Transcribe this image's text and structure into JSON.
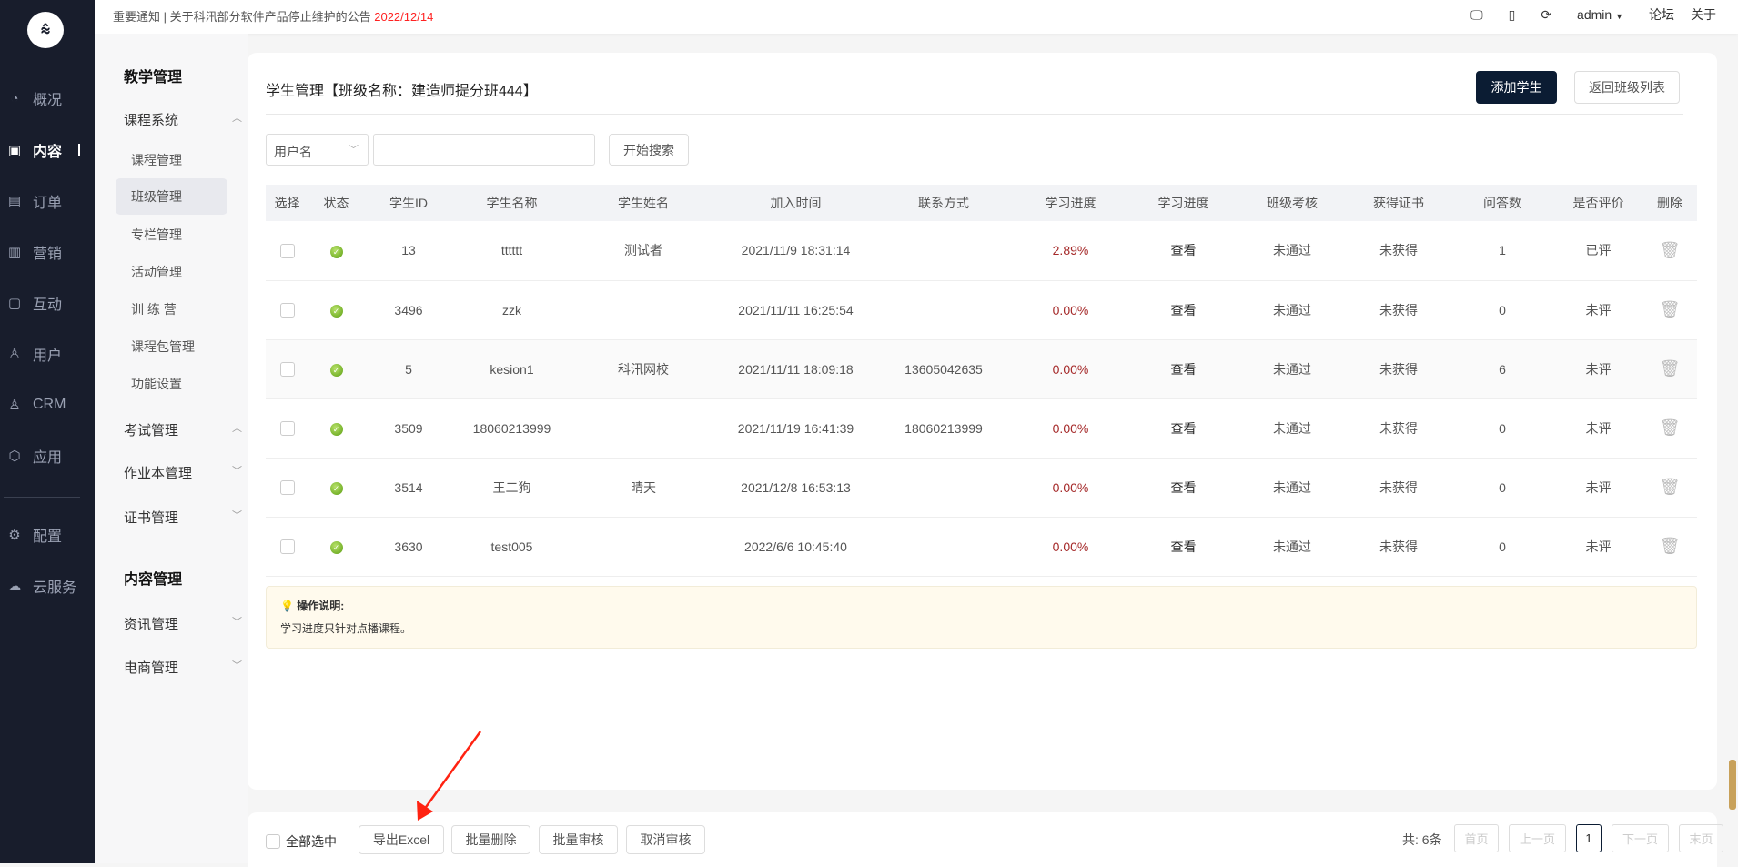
{
  "topbar": {
    "notice": "重要通知 | 关于科汛部分软件产品停止维护的公告",
    "notice_date": "2022/12/14",
    "user": "admin",
    "links": [
      "论坛",
      "关于"
    ]
  },
  "nav": [
    {
      "label": "概况",
      "icon": "pie-chart-icon"
    },
    {
      "label": "内容",
      "icon": "book-icon",
      "active": true
    },
    {
      "label": "订单",
      "icon": "document-icon"
    },
    {
      "label": "营销",
      "icon": "bar-chart-icon"
    },
    {
      "label": "互动",
      "icon": "chat-icon"
    },
    {
      "label": "用户",
      "icon": "user-icon"
    },
    {
      "label": "CRM",
      "icon": "person-tie-icon"
    },
    {
      "label": "应用",
      "icon": "hexagon-icon"
    },
    {
      "label": "配置",
      "icon": "gear-icon"
    },
    {
      "label": "云服务",
      "icon": "cloud-icon"
    }
  ],
  "subnav": {
    "section1": "教学管理",
    "course_system": "课程系统",
    "items": [
      "课程管理",
      "班级管理",
      "专栏管理",
      "活动管理",
      "训 练 营",
      "课程包管理",
      "功能设置"
    ],
    "groups": [
      "考试管理",
      "作业本管理",
      "证书管理"
    ],
    "section2": "内容管理",
    "groups2": [
      "资讯管理",
      "电商管理"
    ]
  },
  "main": {
    "title": "学生管理【班级名称：建造师提分班444】",
    "add_button": "添加学生",
    "back_button": "返回班级列表",
    "search_field": "用户名",
    "search_value": "",
    "search_button": "开始搜索"
  },
  "table": {
    "headers": [
      "选择",
      "状态",
      "学生ID",
      "学生名称",
      "学生姓名",
      "加入时间",
      "联系方式",
      "学习进度",
      "学习进度",
      "班级考核",
      "获得证书",
      "问答数",
      "是否评价",
      "删除"
    ],
    "rows": [
      {
        "id": "13",
        "name": "tttttt",
        "realname": "测试者",
        "joined": "2021/11/9 18:31:14",
        "contact": "",
        "progress": "2.89%",
        "view": "查看",
        "exam": "未通过",
        "cert": "未获得",
        "qa": "1",
        "rated": "已评"
      },
      {
        "id": "3496",
        "name": "zzk",
        "realname": "",
        "joined": "2021/11/11 16:25:54",
        "contact": "",
        "progress": "0.00%",
        "view": "查看",
        "exam": "未通过",
        "cert": "未获得",
        "qa": "0",
        "rated": "未评"
      },
      {
        "id": "5",
        "name": "kesion1",
        "realname": "科汛网校",
        "joined": "2021/11/11 18:09:18",
        "contact": "13605042635",
        "progress": "0.00%",
        "view": "查看",
        "exam": "未通过",
        "cert": "未获得",
        "qa": "6",
        "rated": "未评"
      },
      {
        "id": "3509",
        "name": "18060213999",
        "realname": "",
        "joined": "2021/11/19 16:41:39",
        "contact": "18060213999",
        "progress": "0.00%",
        "view": "查看",
        "exam": "未通过",
        "cert": "未获得",
        "qa": "0",
        "rated": "未评"
      },
      {
        "id": "3514",
        "name": "王二狗",
        "realname": "晴天",
        "joined": "2021/12/8 16:53:13",
        "contact": "",
        "progress": "0.00%",
        "view": "查看",
        "exam": "未通过",
        "cert": "未获得",
        "qa": "0",
        "rated": "未评"
      },
      {
        "id": "3630",
        "name": "test005",
        "realname": "",
        "joined": "2022/6/6 10:45:40",
        "contact": "",
        "progress": "0.00%",
        "view": "查看",
        "exam": "未通过",
        "cert": "未获得",
        "qa": "0",
        "rated": "未评"
      }
    ]
  },
  "tip": {
    "title": "操作说明:",
    "text": "学习进度只针对点播课程。"
  },
  "footer": {
    "select_all": "全部选中",
    "export": "导出Excel",
    "batch_delete": "批量删除",
    "batch_approve": "批量审核",
    "cancel_approve": "取消审核",
    "total": "共: 6条",
    "first": "首页",
    "prev": "上一页",
    "current": "1",
    "next": "下一页",
    "last": "末页"
  },
  "colors": {
    "sidebar": "#181d2c",
    "primary": "#0b1c33",
    "progress": "#a52a2a",
    "notice_date": "#ff2222"
  }
}
